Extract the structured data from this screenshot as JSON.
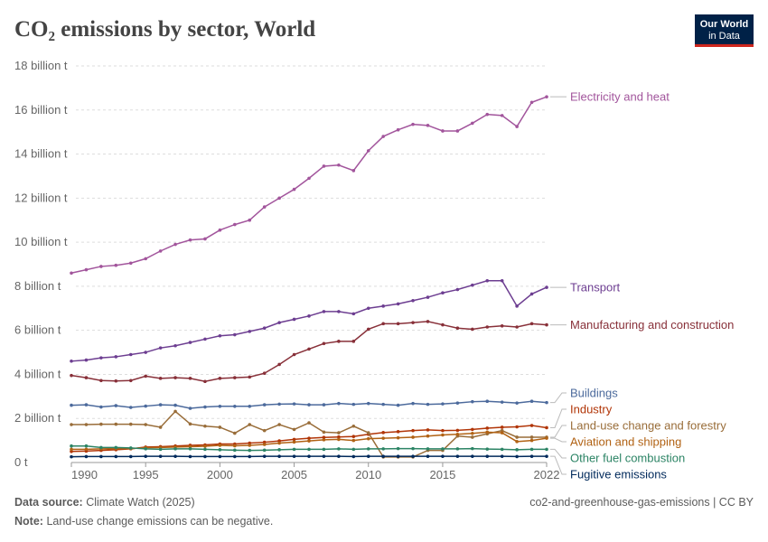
{
  "chart_data": {
    "type": "line",
    "title": "CO₂ emissions by sector, World",
    "logo": [
      "Our World",
      "in Data"
    ],
    "source_label": "Data source:",
    "source": "Climate Watch (2025)",
    "url": "co2-and-greenhouse-gas-emissions | CC BY",
    "note_label": "Note:",
    "note": "Land-use change emissions can be negative.",
    "x": [
      1990,
      1991,
      1992,
      1993,
      1994,
      1995,
      1996,
      1997,
      1998,
      1999,
      2000,
      2001,
      2002,
      2003,
      2004,
      2005,
      2006,
      2007,
      2008,
      2009,
      2010,
      2011,
      2012,
      2013,
      2014,
      2015,
      2016,
      2017,
      2018,
      2019,
      2020,
      2021,
      2022
    ],
    "xlim": [
      1990,
      2022
    ],
    "xticks": [
      1990,
      1995,
      2000,
      2005,
      2010,
      2015,
      2022
    ],
    "ylim": [
      0,
      18
    ],
    "yticks": [
      {
        "value": 0,
        "label": "0 t"
      },
      {
        "value": 2,
        "label": "2 billion t"
      },
      {
        "value": 4,
        "label": "4 billion t"
      },
      {
        "value": 6,
        "label": "6 billion t"
      },
      {
        "value": 8,
        "label": "8 billion t"
      },
      {
        "value": 10,
        "label": "10 billion t"
      },
      {
        "value": 12,
        "label": "12 billion t"
      },
      {
        "value": 14,
        "label": "14 billion t"
      },
      {
        "value": 16,
        "label": "16 billion t"
      },
      {
        "value": 18,
        "label": "18 billion t"
      }
    ],
    "grid": true,
    "series": [
      {
        "name": "Electricity and heat",
        "color": "#a2559c",
        "values": [
          8.6,
          8.75,
          8.9,
          8.95,
          9.05,
          9.25,
          9.6,
          9.9,
          10.1,
          10.15,
          10.55,
          10.8,
          11.0,
          11.6,
          12.0,
          12.4,
          12.9,
          13.45,
          13.5,
          13.25,
          14.15,
          14.8,
          15.1,
          15.35,
          15.3,
          15.05,
          15.05,
          15.4,
          15.8,
          15.75,
          15.25,
          16.35,
          16.6
        ]
      },
      {
        "name": "Transport",
        "color": "#6d3e91",
        "values": [
          4.6,
          4.65,
          4.75,
          4.8,
          4.9,
          5.0,
          5.2,
          5.3,
          5.45,
          5.6,
          5.75,
          5.8,
          5.95,
          6.1,
          6.35,
          6.5,
          6.65,
          6.85,
          6.85,
          6.75,
          7.0,
          7.1,
          7.2,
          7.35,
          7.5,
          7.7,
          7.85,
          8.05,
          8.25,
          8.25,
          7.1,
          7.65,
          7.95
        ]
      },
      {
        "name": "Manufacturing and construction",
        "color": "#883039",
        "values": [
          3.95,
          3.85,
          3.72,
          3.7,
          3.72,
          3.92,
          3.82,
          3.85,
          3.82,
          3.68,
          3.82,
          3.85,
          3.88,
          4.05,
          4.45,
          4.9,
          5.15,
          5.4,
          5.5,
          5.5,
          6.05,
          6.3,
          6.3,
          6.35,
          6.4,
          6.25,
          6.1,
          6.05,
          6.15,
          6.2,
          6.15,
          6.3,
          6.25
        ]
      },
      {
        "name": "Buildings",
        "color": "#4c6a9c",
        "values": [
          2.6,
          2.62,
          2.52,
          2.58,
          2.5,
          2.56,
          2.62,
          2.6,
          2.46,
          2.52,
          2.55,
          2.55,
          2.55,
          2.62,
          2.65,
          2.66,
          2.62,
          2.62,
          2.68,
          2.64,
          2.68,
          2.64,
          2.6,
          2.68,
          2.64,
          2.66,
          2.7,
          2.76,
          2.78,
          2.74,
          2.7,
          2.78,
          2.72
        ]
      },
      {
        "name": "Industry",
        "color": "#b13507",
        "values": [
          0.5,
          0.52,
          0.55,
          0.58,
          0.62,
          0.7,
          0.72,
          0.75,
          0.78,
          0.8,
          0.84,
          0.84,
          0.88,
          0.92,
          0.98,
          1.05,
          1.1,
          1.14,
          1.16,
          1.18,
          1.28,
          1.36,
          1.4,
          1.45,
          1.48,
          1.45,
          1.46,
          1.5,
          1.56,
          1.6,
          1.62,
          1.68,
          1.58
        ]
      },
      {
        "name": "Land-use change and forestry",
        "color": "#996d39",
        "values": [
          1.72,
          1.72,
          1.74,
          1.74,
          1.74,
          1.72,
          1.6,
          2.32,
          1.75,
          1.65,
          1.6,
          1.33,
          1.72,
          1.45,
          1.72,
          1.5,
          1.8,
          1.38,
          1.35,
          1.65,
          1.35,
          0.25,
          0.25,
          0.25,
          0.55,
          0.55,
          1.2,
          1.15,
          1.3,
          1.45,
          1.15,
          1.15,
          1.15
        ]
      },
      {
        "name": "Aviation and shipping",
        "color": "#b16214",
        "values": [
          0.6,
          0.6,
          0.62,
          0.63,
          0.63,
          0.67,
          0.68,
          0.7,
          0.72,
          0.74,
          0.78,
          0.76,
          0.78,
          0.82,
          0.88,
          0.93,
          0.98,
          1.03,
          1.05,
          1.0,
          1.08,
          1.1,
          1.12,
          1.15,
          1.2,
          1.25,
          1.28,
          1.32,
          1.38,
          1.35,
          0.95,
          1.0,
          1.1
        ]
      },
      {
        "name": "Other fuel combustion",
        "color": "#2c8465",
        "values": [
          0.75,
          0.75,
          0.68,
          0.68,
          0.66,
          0.62,
          0.6,
          0.62,
          0.62,
          0.6,
          0.58,
          0.56,
          0.55,
          0.56,
          0.58,
          0.6,
          0.6,
          0.6,
          0.62,
          0.6,
          0.62,
          0.62,
          0.63,
          0.63,
          0.62,
          0.62,
          0.62,
          0.63,
          0.61,
          0.6,
          0.58,
          0.6,
          0.6
        ]
      },
      {
        "name": "Fugitive emissions",
        "color": "#00295b",
        "values": [
          0.26,
          0.27,
          0.27,
          0.27,
          0.27,
          0.28,
          0.28,
          0.28,
          0.27,
          0.27,
          0.27,
          0.27,
          0.27,
          0.28,
          0.28,
          0.28,
          0.28,
          0.28,
          0.28,
          0.27,
          0.28,
          0.28,
          0.28,
          0.28,
          0.28,
          0.28,
          0.28,
          0.28,
          0.28,
          0.28,
          0.27,
          0.28,
          0.28
        ]
      }
    ]
  }
}
